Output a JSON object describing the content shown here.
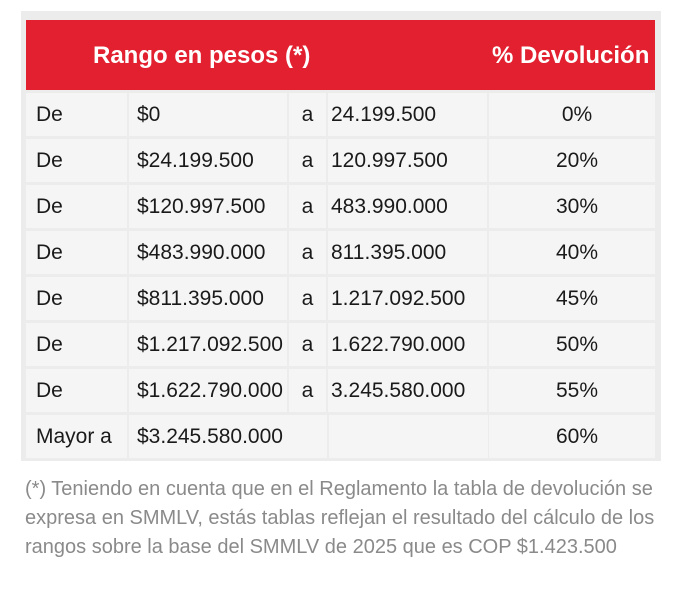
{
  "table": {
    "header": {
      "range_label": "Rango en pesos (*)",
      "pct_label": "% Devolución"
    },
    "rows": [
      {
        "label": "De",
        "from": "$0",
        "sep": "a",
        "to": "24.199.500",
        "pct": "0%"
      },
      {
        "label": "De",
        "from": "$24.199.500",
        "sep": "a",
        "to": "120.997.500",
        "pct": "20%"
      },
      {
        "label": "De",
        "from": "$120.997.500",
        "sep": "a",
        "to": "483.990.000",
        "pct": "30%"
      },
      {
        "label": "De",
        "from": "$483.990.000",
        "sep": "a",
        "to": "811.395.000",
        "pct": "40%"
      },
      {
        "label": "De",
        "from": "$811.395.000",
        "sep": "a",
        "to": "1.217.092.500",
        "pct": "45%"
      },
      {
        "label": "De",
        "from": "$1.217.092.500",
        "sep": "a",
        "to": "1.622.790.000",
        "pct": "50%"
      },
      {
        "label": "De",
        "from": "$1.622.790.000",
        "sep": "a",
        "to": "3.245.580.000",
        "pct": "55%"
      },
      {
        "label": "Mayor a",
        "from": "$3.245.580.000",
        "sep": "",
        "to": "",
        "pct": "60%"
      }
    ]
  },
  "colors": {
    "header_bg": "#e2202f",
    "cell_bg": "#f5f5f5",
    "table_bg": "#ececec",
    "note_text": "#8a8a8a"
  },
  "footnote": "(*) Teniendo en cuenta que en el Reglamento la tabla de devolución se expresa en SMMLV, estás tablas reflejan el resultado del cálculo de los rangos sobre la base del SMMLV de 2025 que es COP $1.423.500"
}
